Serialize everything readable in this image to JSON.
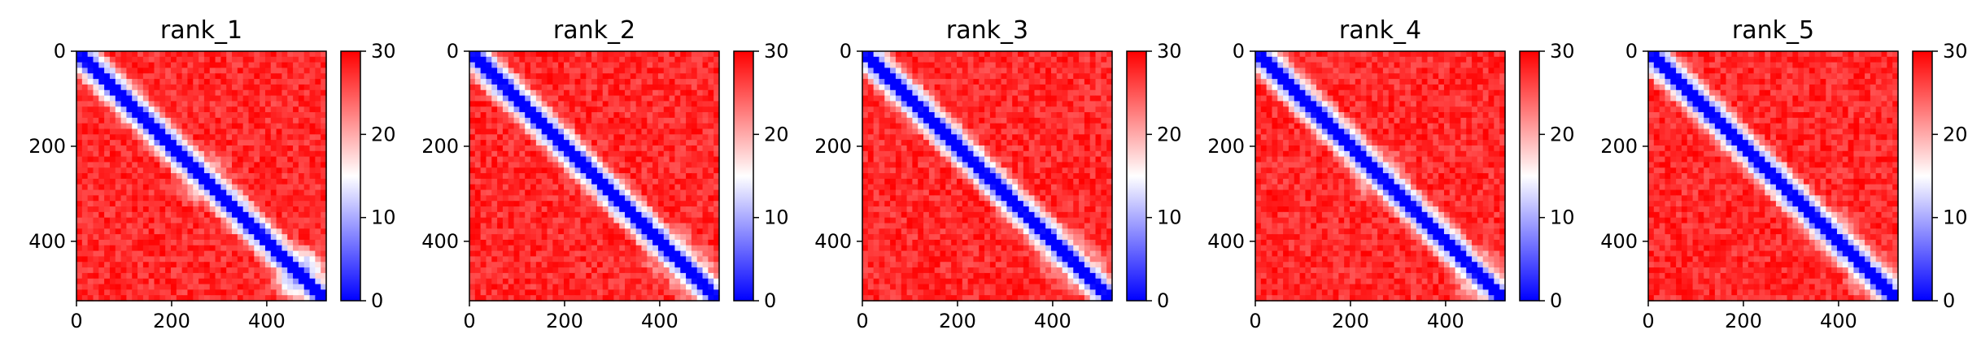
{
  "chart_data": [
    {
      "type": "heatmap",
      "title": "rank_1",
      "xlim": [
        0,
        525
      ],
      "ylim": [
        525,
        0
      ],
      "xticks": [
        "0",
        "200",
        "400"
      ],
      "yticks": [
        "0",
        "200",
        "400"
      ],
      "colorbar": {
        "range": [
          0,
          30
        ],
        "ticks": [
          "0",
          "10",
          "20",
          "30"
        ]
      },
      "features": [
        {
          "center": 270,
          "strength": 0.55
        },
        {
          "center": 470,
          "strength": 1.0
        }
      ]
    },
    {
      "type": "heatmap",
      "title": "rank_2",
      "xlim": [
        0,
        525
      ],
      "ylim": [
        525,
        0
      ],
      "xticks": [
        "0",
        "200",
        "400"
      ],
      "yticks": [
        "0",
        "200",
        "400"
      ],
      "colorbar": {
        "range": [
          0,
          30
        ],
        "ticks": [
          "0",
          "10",
          "20",
          "30"
        ]
      },
      "features": [
        {
          "center": 420,
          "strength": 0.5
        },
        {
          "center": 470,
          "strength": 0.6
        }
      ]
    },
    {
      "type": "heatmap",
      "title": "rank_3",
      "xlim": [
        0,
        525
      ],
      "ylim": [
        525,
        0
      ],
      "xticks": [
        "0",
        "200",
        "400"
      ],
      "yticks": [
        "0",
        "200",
        "400"
      ],
      "colorbar": {
        "range": [
          0,
          30
        ],
        "ticks": [
          "0",
          "10",
          "20",
          "30"
        ]
      },
      "features": [
        {
          "center": 420,
          "strength": 0.5
        },
        {
          "center": 460,
          "strength": 0.5
        }
      ]
    },
    {
      "type": "heatmap",
      "title": "rank_4",
      "xlim": [
        0,
        525
      ],
      "ylim": [
        525,
        0
      ],
      "xticks": [
        "0",
        "200",
        "400"
      ],
      "yticks": [
        "0",
        "200",
        "400"
      ],
      "colorbar": {
        "range": [
          0,
          30
        ],
        "ticks": [
          "0",
          "10",
          "20",
          "30"
        ]
      },
      "features": [
        {
          "center": 260,
          "strength": 0.5
        },
        {
          "center": 470,
          "strength": 0.6
        }
      ]
    },
    {
      "type": "heatmap",
      "title": "rank_5",
      "xlim": [
        0,
        525
      ],
      "ylim": [
        525,
        0
      ],
      "xticks": [
        "0",
        "200",
        "400"
      ],
      "yticks": [
        "0",
        "200",
        "400"
      ],
      "colorbar": {
        "range": [
          0,
          30
        ],
        "ticks": [
          "0",
          "10",
          "20",
          "30"
        ]
      },
      "features": [
        {
          "center": 380,
          "strength": 0.4
        },
        {
          "center": 470,
          "strength": 0.5
        }
      ]
    }
  ],
  "colors": {
    "low": "#0000ff",
    "mid": "#ffffff",
    "high": "#ff0000"
  }
}
